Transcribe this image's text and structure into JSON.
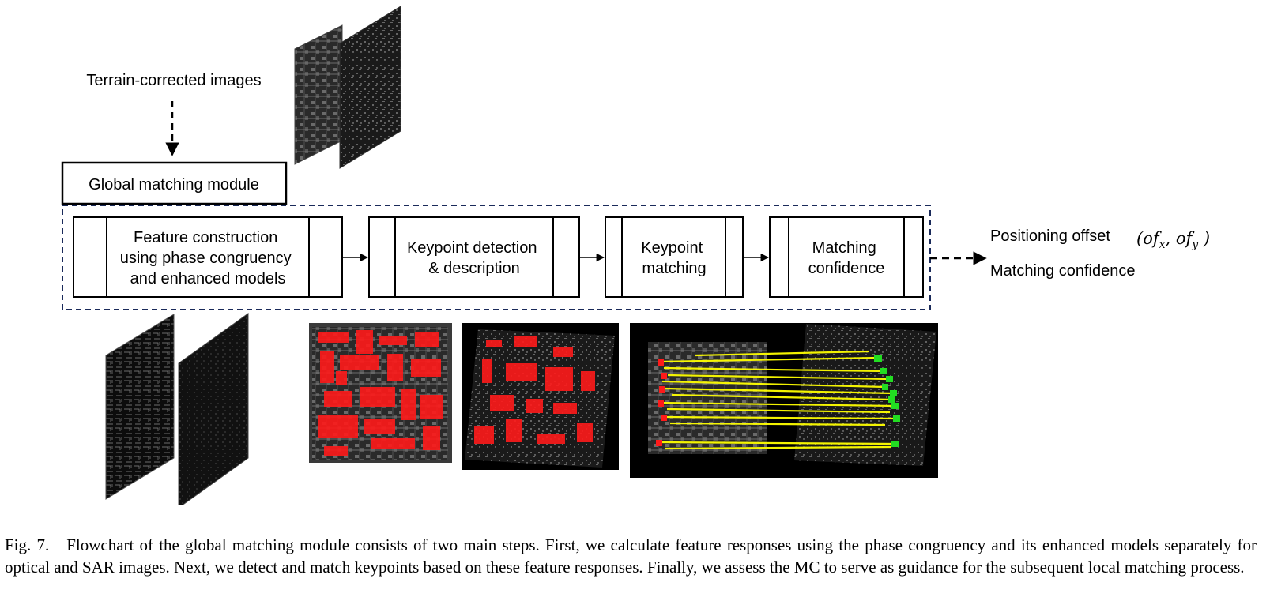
{
  "input_label": "Terrain-corrected images",
  "module_title": "Global matching module",
  "steps": [
    {
      "lines": [
        "Feature construction",
        "using phase congruency",
        "and enhanced models"
      ]
    },
    {
      "lines": [
        "Keypoint detection",
        "& description"
      ]
    },
    {
      "lines": [
        "Keypoint",
        "matching"
      ]
    },
    {
      "lines": [
        "Matching",
        "confidence"
      ]
    }
  ],
  "outputs": {
    "offset_label": "Positioning offset",
    "offset_math": "(of_x, of_y)",
    "confidence_label": "Matching confidence"
  },
  "caption": {
    "label": "Fig. 7.",
    "text": "Flowchart of the global matching module consists of two main steps. First, we calculate feature responses using the phase congruency and its enhanced models separately for optical and SAR images. Next, we detect and match keypoints based on these feature responses. Finally, we assess the MC to serve as guidance for the subsequent local matching process."
  },
  "colors": {
    "dashed_frame": "#1a2a5a",
    "keypoints": "#ff1a1a",
    "match_lines": "#ffff00",
    "match_ends": "#22dd22"
  }
}
